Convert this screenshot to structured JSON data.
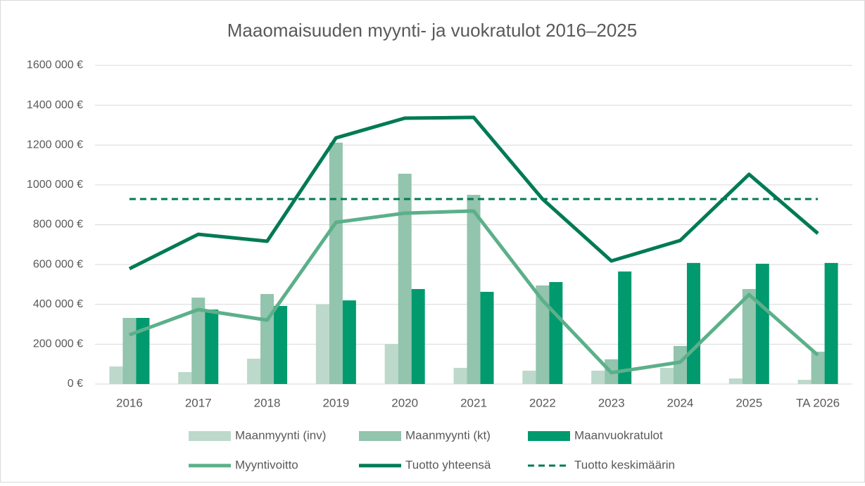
{
  "chart_data": {
    "type": "bar_line",
    "title": "Maaomaisuuden myynti- ja vuokratulot 2016–2025",
    "categories": [
      "2016",
      "2017",
      "2018",
      "2019",
      "2020",
      "2021",
      "2022",
      "2023",
      "2024",
      "2025",
      "TA 2026"
    ],
    "series": [
      {
        "name": "Maanmyynti (inv)",
        "type": "bar",
        "color": "#bcd9cb",
        "values": [
          88000,
          60000,
          127000,
          400000,
          200000,
          81000,
          67000,
          67000,
          81000,
          28000,
          21000
        ]
      },
      {
        "name": "Maanmyynti (kt)",
        "type": "bar",
        "color": "#93c4ad",
        "values": [
          332000,
          434000,
          452000,
          1212000,
          1056000,
          950000,
          495000,
          124000,
          191000,
          477000,
          162000
        ]
      },
      {
        "name": "Maanvuokratulot",
        "type": "bar",
        "color": "#009a6e",
        "values": [
          332000,
          374000,
          392000,
          420000,
          477000,
          463000,
          512000,
          565000,
          608000,
          604000,
          608000
        ]
      },
      {
        "name": "Myyntivoitto",
        "type": "line",
        "color": "#5bb08a",
        "values": [
          247000,
          374000,
          321000,
          812000,
          858000,
          869000,
          420000,
          57000,
          110000,
          449000,
          145000
        ]
      },
      {
        "name": "Tuotto yhteensä",
        "type": "line",
        "color": "#007a55",
        "values": [
          579000,
          752000,
          717000,
          1236000,
          1335000,
          1339000,
          929000,
          618000,
          721000,
          1053000,
          756000
        ]
      },
      {
        "name": "Tuotto keskimäärin",
        "type": "line",
        "dashed": true,
        "color": "#007a55",
        "values": [
          929000,
          929000,
          929000,
          929000,
          929000,
          929000,
          929000,
          929000,
          929000,
          929000,
          929000
        ]
      }
    ],
    "ylim": [
      0,
      1600000
    ],
    "yticks": [
      {
        "value": 0,
        "label": "0 €"
      },
      {
        "value": 200000,
        "label": "200 000 €"
      },
      {
        "value": 400000,
        "label": "400 000 €"
      },
      {
        "value": 600000,
        "label": "600 000 €"
      },
      {
        "value": 800000,
        "label": "800 000 €"
      },
      {
        "value": 1000000,
        "label": "1000 000 €"
      },
      {
        "value": 1200000,
        "label": "1200 000 €"
      },
      {
        "value": 1400000,
        "label": "1400 000 €"
      },
      {
        "value": 1600000,
        "label": "1600 000 €"
      }
    ],
    "grid": true,
    "legend": "bottom"
  }
}
